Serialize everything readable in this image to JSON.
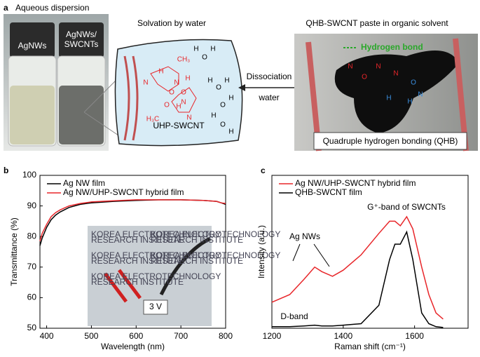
{
  "panel_labels": [
    "a",
    "b",
    "c"
  ],
  "panel_a": {
    "photo_title": "Aqueous dispersion",
    "vial_left": "AgNWs",
    "vial_right": [
      "AgNWs/",
      "SWCNTs"
    ],
    "solvation_title": "Solvation by water",
    "molecule_name": "UHP-SWCNT",
    "molecule_labels": [
      "CH₃",
      "N",
      "H",
      "O",
      "N",
      "H",
      "N",
      "H",
      "O",
      "H₃C",
      "N",
      "O"
    ],
    "water_labels": [
      "H",
      "O",
      "H",
      "H",
      "O",
      "H",
      "O",
      "H",
      "H",
      "O",
      "H"
    ],
    "arrow_text": [
      "Dissociation",
      "water"
    ],
    "paste_title": "QHB-SWCNT paste in organic solvent",
    "hydrogen_bond": "Hydrogen bond",
    "qhb_labels": [
      "N",
      "O",
      "N",
      "N",
      "O",
      "N",
      "H",
      "H"
    ],
    "qhb_caption": "Quadruple hydrogen bonding (QHB)"
  },
  "inset": {
    "watermark": [
      "KOREA ELECTROTECHNOLOGY",
      "RESEARCH INSTITUTE"
    ],
    "voltage": "3 V"
  },
  "chart_data": [
    {
      "type": "line",
      "x_label": "Wavelength (nm)",
      "y_label": "Transmittance (%)",
      "x": [
        385,
        390,
        400,
        410,
        420,
        430,
        450,
        475,
        500,
        550,
        600,
        650,
        700,
        750,
        780,
        790,
        800
      ],
      "series": [
        {
          "name": "Ag NW film",
          "color": "#000000",
          "values": [
            77,
            79.5,
            83,
            85.5,
            87,
            88,
            89.5,
            90.5,
            91,
            91.5,
            91.8,
            92,
            92,
            91.8,
            91.5,
            91,
            90.5
          ]
        },
        {
          "name": "Ag NW/UHP-SWCNT hybrid film",
          "color": "#e8262a",
          "values": [
            78.5,
            81,
            84,
            86.5,
            87.8,
            88.7,
            90,
            90.8,
            91.3,
            91.7,
            92,
            92,
            92,
            91.8,
            91.5,
            91,
            90.8
          ]
        }
      ],
      "xlim": [
        385,
        800
      ],
      "ylim": [
        50,
        100
      ],
      "xticks": [
        400,
        500,
        600,
        700,
        800
      ],
      "yticks": [
        50,
        60,
        70,
        80,
        90,
        100
      ]
    },
    {
      "type": "line",
      "x_label": "Raman shift (cm⁻¹)",
      "y_label": "Intensity (a.u.)",
      "x": [
        1200,
        1250,
        1290,
        1320,
        1340,
        1370,
        1400,
        1450,
        1500,
        1530,
        1545,
        1560,
        1578,
        1595,
        1620,
        1640,
        1660,
        1680
      ],
      "series": [
        {
          "name": "Ag NW/UHP-SWCNT hybrid film",
          "color": "#e8262a",
          "values": [
            17,
            22,
            32,
            40,
            37,
            34,
            38,
            48,
            62,
            70,
            70,
            67,
            73,
            65,
            40,
            22,
            10,
            6
          ]
        },
        {
          "name": "QHB-SWCNT film",
          "color": "#000000",
          "values": [
            1,
            1,
            1.5,
            2,
            1.5,
            1.5,
            2,
            3,
            15,
            45,
            55,
            55,
            63,
            45,
            10,
            3,
            1,
            0.5
          ]
        }
      ],
      "annotations": [
        "Ag NWs",
        "D-band",
        "G⁺-band of SWCNTs"
      ],
      "xlim": [
        1200,
        1750
      ],
      "ylim": [
        0,
        100
      ],
      "xticks": [
        1200,
        1400,
        1600
      ]
    }
  ]
}
